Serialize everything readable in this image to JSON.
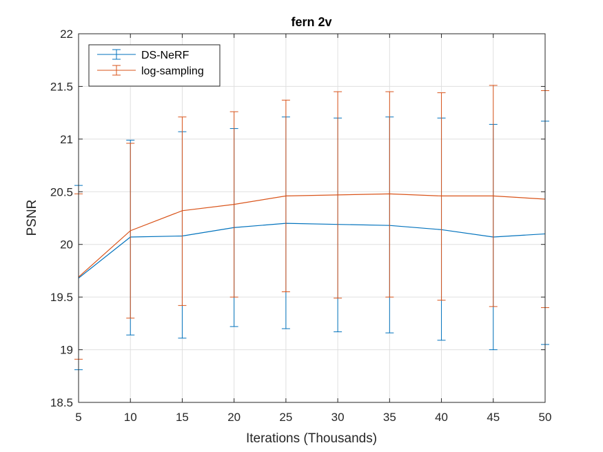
{
  "chart_data": {
    "type": "line",
    "title": "fern 2v",
    "xlabel": "Iterations (Thousands)",
    "ylabel": "PSNR",
    "xlim": [
      5,
      50
    ],
    "ylim": [
      18.5,
      22
    ],
    "xticks": [
      5,
      10,
      15,
      20,
      25,
      30,
      35,
      40,
      45,
      50
    ],
    "yticks": [
      18.5,
      19,
      19.5,
      20,
      20.5,
      21,
      21.5,
      22
    ],
    "grid": true,
    "legend_placement": "top-left",
    "x": [
      5,
      10,
      15,
      20,
      25,
      30,
      35,
      40,
      45,
      50
    ],
    "series": [
      {
        "name": "DS-NeRF",
        "color": "#0072BD",
        "values": [
          19.68,
          20.07,
          20.08,
          20.16,
          20.2,
          20.19,
          20.18,
          20.14,
          20.07,
          20.1
        ],
        "lower": [
          18.81,
          19.14,
          19.11,
          19.22,
          19.2,
          19.17,
          19.16,
          19.09,
          19.0,
          19.05
        ],
        "upper": [
          20.56,
          20.99,
          21.07,
          21.1,
          21.21,
          21.2,
          21.21,
          21.2,
          21.14,
          21.17
        ]
      },
      {
        "name": "log-sampling",
        "color": "#D95319",
        "values": [
          19.69,
          20.13,
          20.32,
          20.38,
          20.46,
          20.47,
          20.48,
          20.46,
          20.46,
          20.43
        ],
        "lower": [
          18.91,
          19.3,
          19.42,
          19.5,
          19.55,
          19.49,
          19.5,
          19.47,
          19.41,
          19.4
        ],
        "upper": [
          20.48,
          20.96,
          21.21,
          21.26,
          21.37,
          21.45,
          21.45,
          21.44,
          21.51,
          21.46
        ]
      }
    ]
  }
}
